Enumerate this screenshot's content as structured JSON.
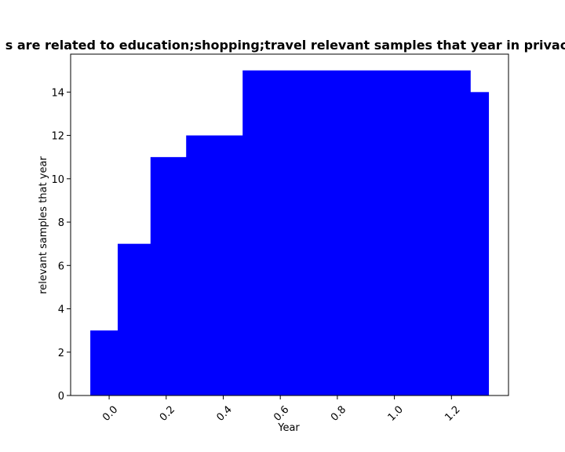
{
  "chart_data": {
    "type": "bar",
    "title": "s are related to education;shopping;travel relevant samples that year in privac",
    "xlabel": "Year",
    "ylabel": "relevant samples that year",
    "bars": [
      {
        "x0": -0.066,
        "x1": 0.03,
        "value": 3
      },
      {
        "x0": 0.03,
        "x1": 0.145,
        "value": 7
      },
      {
        "x0": 0.145,
        "x1": 0.27,
        "value": 11
      },
      {
        "x0": 0.27,
        "x1": 0.468,
        "value": 12
      },
      {
        "x0": 0.468,
        "x1": 1.266,
        "value": 15
      },
      {
        "x0": 1.266,
        "x1": 1.33,
        "value": 14
      }
    ],
    "xlim": [
      -0.135,
      1.4
    ],
    "ylim": [
      0,
      15.75
    ],
    "x_ticks": [
      0.0,
      0.2,
      0.4,
      0.6,
      0.8,
      1.0,
      1.2
    ],
    "x_tick_labels": [
      "0.0",
      "0.2",
      "0.4",
      "0.6",
      "0.8",
      "1.0",
      "1.2"
    ],
    "y_ticks": [
      0,
      2,
      4,
      6,
      8,
      10,
      12,
      14
    ],
    "y_tick_labels": [
      "0",
      "2",
      "4",
      "6",
      "8",
      "10",
      "12",
      "14"
    ],
    "bar_color": "#0000ff",
    "grid": false,
    "legend": "none"
  }
}
